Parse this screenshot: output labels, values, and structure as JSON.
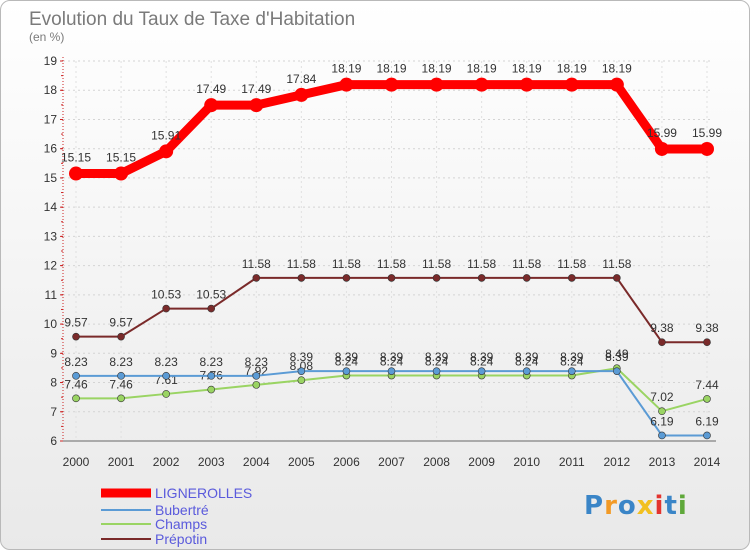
{
  "chart_data": {
    "type": "line",
    "title": "Evolution du Taux de Taxe d'Habitation",
    "unit_label": "(en %)",
    "x": [
      "2000",
      "2001",
      "2002",
      "2003",
      "2004",
      "2005",
      "2006",
      "2007",
      "2008",
      "2009",
      "2010",
      "2011",
      "2012",
      "2013",
      "2014"
    ],
    "ylim": [
      6,
      19
    ],
    "yticks": [
      6,
      7,
      8,
      9,
      10,
      11,
      12,
      13,
      14,
      15,
      16,
      17,
      18,
      19
    ],
    "legend_position": "bottom-left",
    "series": [
      {
        "name": "LIGNEROLLES",
        "color": "#ff0000",
        "values": [
          15.15,
          15.15,
          15.91,
          17.49,
          17.49,
          17.84,
          18.19,
          18.19,
          18.19,
          18.19,
          18.19,
          18.19,
          18.19,
          15.99,
          15.99
        ],
        "labels": [
          "15.15",
          "15.15",
          "15.91",
          "17.49",
          "17.49",
          "17.84",
          "18.19",
          "18.19",
          "18.19",
          "18.19",
          "18.19",
          "18.19",
          "18.19",
          "15.99",
          "15.99"
        ]
      },
      {
        "name": "Bubertré",
        "color": "#5b9bd5",
        "values": [
          8.23,
          8.23,
          8.23,
          8.23,
          8.23,
          8.39,
          8.39,
          8.39,
          8.39,
          8.39,
          8.39,
          8.39,
          8.39,
          6.19,
          6.19
        ],
        "labels": [
          "8.23",
          "8.23",
          "8.23",
          "8.23",
          "8.23",
          "8.39",
          "8.39",
          "8.39",
          "8.39",
          "8.39",
          "8.39",
          "8.39",
          "8.39",
          "6.19",
          "6.19"
        ]
      },
      {
        "name": "Champs",
        "color": "#9ad463",
        "values": [
          7.46,
          7.46,
          7.61,
          7.76,
          7.92,
          8.08,
          8.24,
          8.24,
          8.24,
          8.24,
          8.24,
          8.24,
          8.49,
          7.02,
          7.44
        ],
        "labels": [
          "7.46",
          "7.46",
          "7.61",
          "7.76",
          "7.92",
          "8.08",
          "8.24",
          "8.24",
          "8.24",
          "8.24",
          "8.24",
          "8.24",
          "8.49",
          "7.02",
          "7.44"
        ]
      },
      {
        "name": "Prépotin",
        "color": "#7a2a2a",
        "values": [
          9.57,
          9.57,
          10.53,
          10.53,
          11.58,
          11.58,
          11.58,
          11.58,
          11.58,
          11.58,
          11.58,
          11.58,
          11.58,
          9.38,
          9.38
        ],
        "labels": [
          "9.57",
          "9.57",
          "10.53",
          "10.53",
          "11.58",
          "11.58",
          "11.58",
          "11.58",
          "11.58",
          "11.58",
          "11.58",
          "11.58",
          "11.58",
          "9.38",
          "9.38"
        ]
      }
    ]
  },
  "logo": {
    "text": "Proxiti",
    "colors": [
      "#3a85c7",
      "#f29a26",
      "#3a85c7",
      "#f2c01f",
      "#e3342f",
      "#3a85c7",
      "#5fa83a"
    ]
  }
}
